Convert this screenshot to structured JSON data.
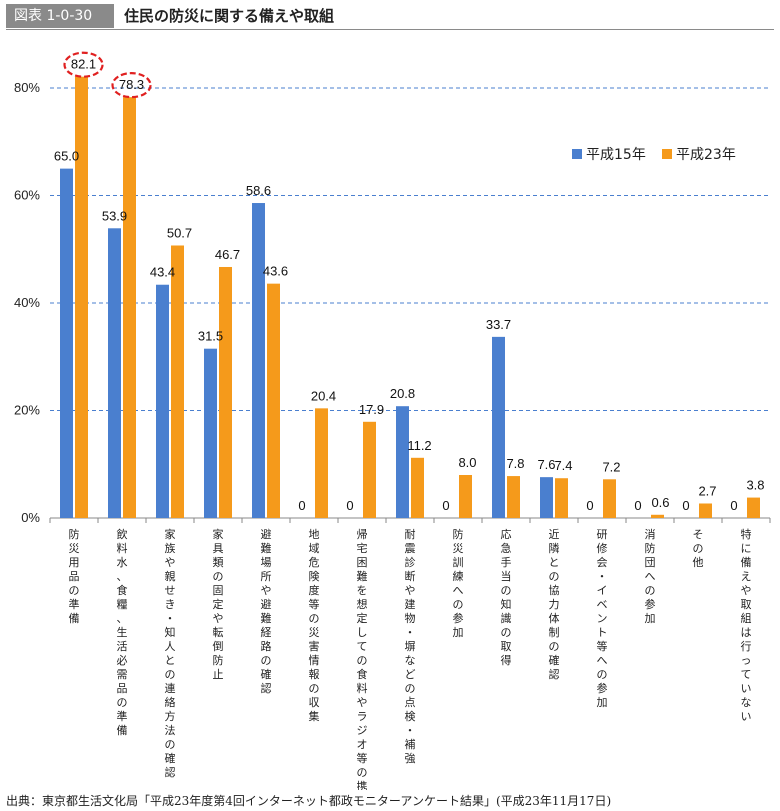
{
  "header": {
    "badge": "図表 1-0-30",
    "title": "住民の防災に関する備えや取組"
  },
  "source": "出典：東京都生活文化局「平成23年度第4回インターネット都政モニターアンケート結果」(平成23年11月17日)",
  "colors": {
    "series1": "#4a7fcf",
    "series2": "#f59a1b",
    "grid": "#4a7fcf",
    "highlight": "#e02020"
  },
  "chart_data": {
    "type": "bar",
    "categories": [
      "防災用品の準備",
      "飲料水、食糧、生活必需品の準備",
      "家族や親せき・知人との連絡方法の確認",
      "家具類の固定や転倒防止",
      "避難場所や避難経路の確認",
      "地域危険度等の災害情報の収集",
      "帰宅困難を想定しての食料やラジオ等の携帯",
      "耐震診断や建物・塀などの点検・補強",
      "防災訓練への参加",
      "応急手当の知識の取得",
      "近隣との協力体制の確認",
      "研修会・イベント等への参加",
      "消防団への参加",
      "その他",
      "特に備えや取組は行っていない"
    ],
    "series": [
      {
        "name": "平成15年",
        "values": [
          65.0,
          53.9,
          43.4,
          31.5,
          58.6,
          0,
          0,
          20.8,
          0,
          33.7,
          7.6,
          0,
          0,
          0,
          0
        ],
        "labels": [
          "65.0",
          "53.9",
          "43.4",
          "31.5",
          "58.6",
          "0",
          "0",
          "20.8",
          "0",
          "33.7",
          "7.6",
          "0",
          "0",
          "0",
          "0"
        ]
      },
      {
        "name": "平成23年",
        "values": [
          82.1,
          78.3,
          50.7,
          46.7,
          43.6,
          20.4,
          17.9,
          11.2,
          8.0,
          7.8,
          7.4,
          7.2,
          0.6,
          2.7,
          3.8
        ],
        "labels": [
          "82.1",
          "78.3",
          "50.7",
          "46.7",
          "43.6",
          "20.4",
          "17.9",
          "11.2",
          "8.0",
          "7.8",
          "7.4",
          "7.2",
          "0.6",
          "2.7",
          "3.8"
        ]
      }
    ],
    "yticks": [
      "0%",
      "20%",
      "40%",
      "60%",
      "80%"
    ],
    "ylim": [
      0,
      80
    ],
    "grid": true,
    "legend_position": "top-right",
    "highlighted": [
      "82.1",
      "78.3"
    ]
  }
}
